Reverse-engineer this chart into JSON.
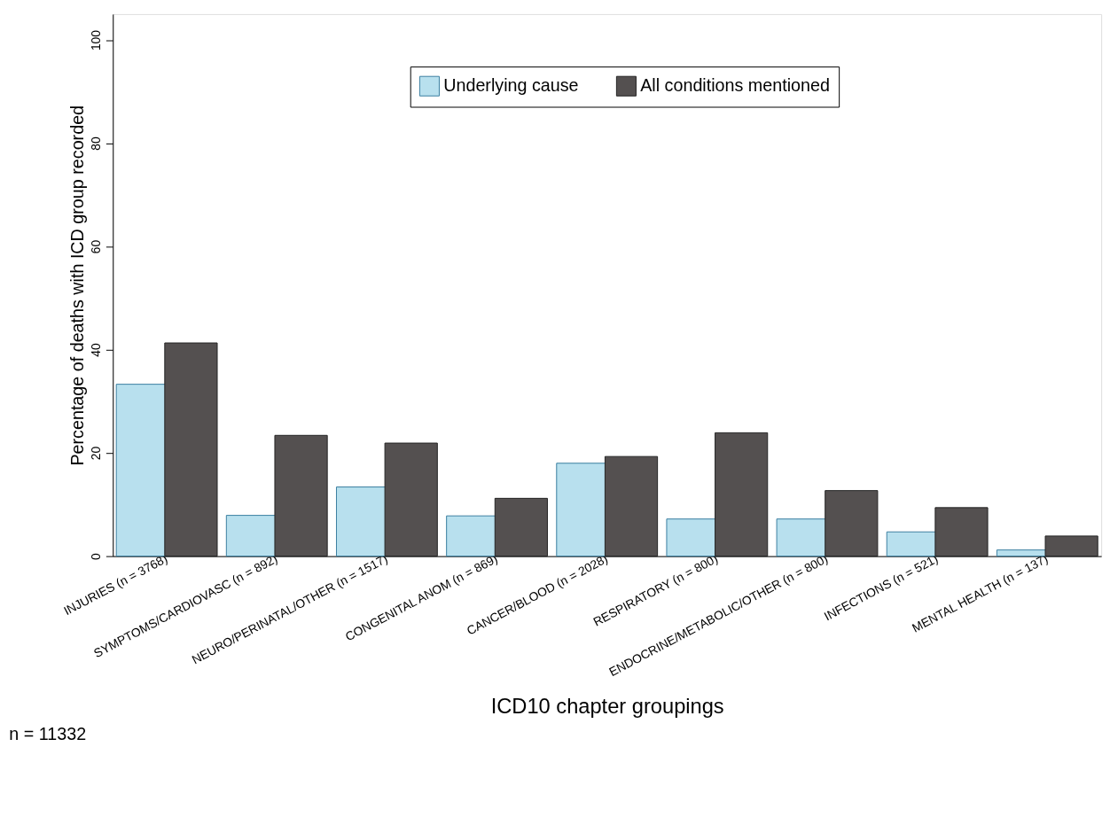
{
  "chart_data": {
    "type": "bar",
    "categories": [
      "INJURIES (n = 3768)",
      "SYMPTOMS/CARDIOVASC (n = 892)",
      "NEURO/PERINATAL/OTHER (n = 1517)",
      "CONGENITAL ANOM (n = 869)",
      "CANCER/BLOOD (n = 2028)",
      "RESPIRATORY (n = 800)",
      "ENDOCRINE/METABOLIC/OTHER (n = 800)",
      "INFECTIONS (n = 521)",
      "MENTAL HEALTH (n = 137)"
    ],
    "series": [
      {
        "name": "Underlying cause",
        "color": "#b8e0ee",
        "values": [
          33.3,
          7.9,
          13.4,
          7.8,
          18.0,
          7.2,
          7.2,
          4.7,
          1.2
        ]
      },
      {
        "name": "All conditions mentioned",
        "color": "#545050",
        "values": [
          41.3,
          23.4,
          21.9,
          11.2,
          19.3,
          23.9,
          12.7,
          9.4,
          3.9
        ]
      }
    ],
    "xlabel": "ICD10 chapter groupings",
    "ylabel": "Percentage of deaths with ICD group recorded",
    "ylim": [
      0,
      105
    ],
    "yticks": [
      0,
      20,
      40,
      60,
      80,
      100
    ],
    "grid": false,
    "legend": "top",
    "annotations": [
      "n = 11332"
    ]
  }
}
